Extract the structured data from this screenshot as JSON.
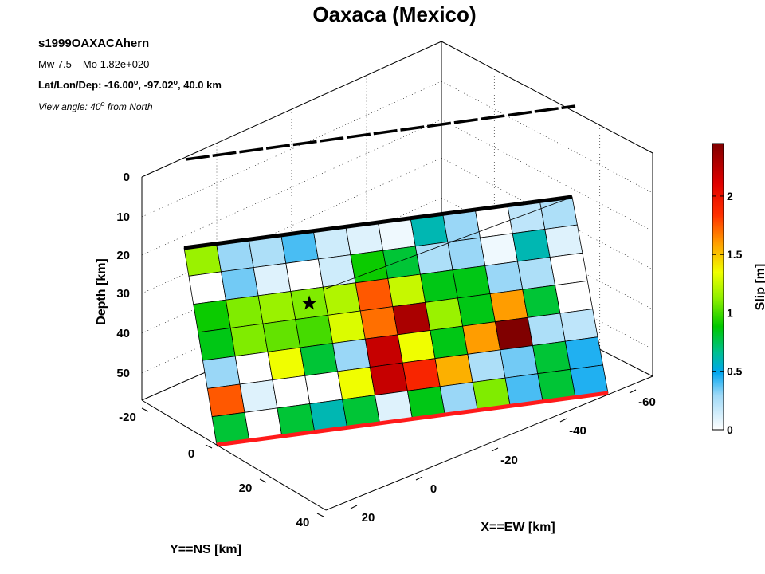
{
  "title": "Oaxaca (Mexico)",
  "info": {
    "event_id": "s1999OAXACAhern",
    "mw_label": "Mw 7.5",
    "mo_label": "Mo 1.82e+020",
    "latlon_prefix": "Lat/Lon/Dep: -16.00",
    "latlon_mid": ", -97.02",
    "latlon_suffix": ", 40.0 km",
    "deg_symbol": "o",
    "view_prefix": "View angle:  40",
    "view_suffix": " from North"
  },
  "chart_data": {
    "type": "heatmap",
    "title": "Oaxaca (Mexico)",
    "zlabel": "Depth [km]",
    "xlabel": "X==EW [km]",
    "ylabel": "Y==NS [km]",
    "colorbar_label": "Slip [m]",
    "depth_ticks": [
      "0",
      "10",
      "20",
      "30",
      "40",
      "50"
    ],
    "x_ticks": [
      "-60",
      "-40",
      "-20",
      "0",
      "20"
    ],
    "y_ticks": [
      "-20",
      "0",
      "20",
      "40"
    ],
    "colorbar_ticks": [
      "0",
      "0.5",
      "1",
      "1.5",
      "2"
    ],
    "colorbar_range": [
      0,
      2.45
    ],
    "hypocenter": {
      "strike_index": 3.5,
      "dip_index": 2.5
    },
    "slip_rows_top_to_bottom": [
      [
        1.15,
        0.3,
        0.25,
        0.4,
        0.15,
        0.1,
        0.05,
        0.6,
        0.3,
        0.0,
        0.2,
        0.25
      ],
      [
        0.0,
        0.35,
        0.1,
        0.0,
        0.15,
        0.9,
        0.8,
        0.25,
        0.3,
        0.05,
        0.6,
        0.1
      ],
      [
        0.9,
        1.1,
        1.15,
        1.1,
        1.2,
        1.75,
        1.25,
        0.85,
        0.85,
        0.3,
        0.25,
        0.0
      ],
      [
        0.85,
        1.1,
        1.05,
        1.0,
        1.3,
        1.7,
        2.3,
        1.15,
        0.85,
        1.6,
        0.8,
        0.0
      ],
      [
        0.3,
        0.0,
        1.35,
        0.8,
        0.3,
        2.2,
        1.35,
        0.85,
        1.6,
        2.45,
        0.25,
        0.2
      ],
      [
        1.75,
        0.1,
        0.0,
        0.0,
        1.35,
        2.2,
        1.9,
        1.55,
        0.25,
        0.35,
        0.8,
        0.45
      ],
      [
        0.8,
        0.0,
        0.8,
        0.6,
        0.8,
        0.1,
        0.85,
        0.3,
        1.1,
        0.4,
        0.8,
        0.45
      ]
    ]
  }
}
